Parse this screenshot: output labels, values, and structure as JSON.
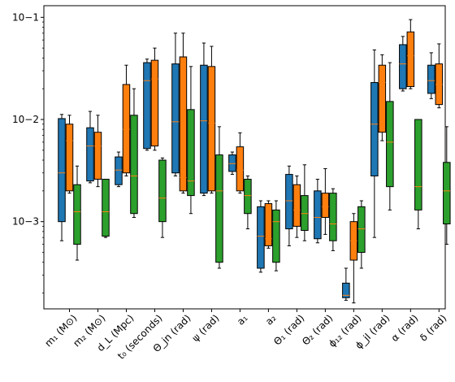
{
  "chart_data": {
    "type": "box",
    "y_scale": "log",
    "ylim": [
      0.00014,
      0.13
    ],
    "yticks": [
      {
        "value": 0.001,
        "label": "10−3"
      },
      {
        "value": 0.01,
        "label": "10−2"
      },
      {
        "value": 0.1,
        "label": "10−1"
      }
    ],
    "grid": false,
    "legend": "none",
    "categories": [
      "m₁ (M⊙)",
      "m₂ (M⊙)",
      "d_L (Mpc)",
      "t₀ (seconds)",
      "Θ_jn (rad)",
      "ψ (rad)",
      "a₁",
      "a₂",
      "Θ₁ (rad)",
      "Θ₂ (rad)",
      "ϕ₁₂ (rad)",
      "ϕ_jl (rad)",
      "α (rad)",
      "δ (rad)"
    ],
    "series": [
      {
        "color": "#1f77b4",
        "boxes": [
          {
            "whislo": 0.00065,
            "q1": 0.001,
            "med": 0.003,
            "q3": 0.0102,
            "whishi": 0.0112
          },
          {
            "whislo": 0.0024,
            "q1": 0.0025,
            "med": 0.0055,
            "q3": 0.0083,
            "whishi": 0.012
          },
          {
            "whislo": 0.0022,
            "q1": 0.0023,
            "med": 0.0032,
            "q3": 0.0043,
            "whishi": 0.0048
          },
          {
            "whislo": 0.005,
            "q1": 0.0052,
            "med": 0.024,
            "q3": 0.036,
            "whishi": 0.039
          },
          {
            "whislo": 0.0028,
            "q1": 0.003,
            "med": 0.0095,
            "q3": 0.035,
            "whishi": 0.07
          },
          {
            "whislo": 0.0018,
            "q1": 0.0019,
            "med": 0.0097,
            "q3": 0.034,
            "whishi": 0.056
          },
          {
            "whislo": 0.0029,
            "q1": 0.0031,
            "med": 0.0037,
            "q3": 0.0045,
            "whishi": 0.0048
          },
          {
            "whislo": 0.00032,
            "q1": 0.00035,
            "med": 0.00072,
            "q3": 0.0014,
            "whishi": 0.0016
          },
          {
            "whislo": 0.00058,
            "q1": 0.00085,
            "med": 0.0016,
            "q3": 0.0029,
            "whishi": 0.0035
          },
          {
            "whislo": 0.00062,
            "q1": 0.00068,
            "med": 0.0011,
            "q3": 0.002,
            "whishi": 0.0026
          },
          {
            "whislo": 0.00017,
            "q1": 0.00018,
            "med": 0.00019,
            "q3": 0.00025,
            "whishi": 0.00035
          },
          {
            "whislo": 0.0007,
            "q1": 0.0028,
            "med": 0.009,
            "q3": 0.023,
            "whishi": 0.048
          },
          {
            "whislo": 0.019,
            "q1": 0.02,
            "med": 0.035,
            "q3": 0.054,
            "whishi": 0.065
          },
          {
            "whislo": 0.016,
            "q1": 0.018,
            "med": 0.024,
            "q3": 0.034,
            "whishi": 0.045
          }
        ]
      },
      {
        "color": "#ff7f0e",
        "boxes": [
          {
            "whislo": 0.0019,
            "q1": 0.002,
            "med": 0.0062,
            "q3": 0.009,
            "whishi": 0.011
          },
          {
            "whislo": 0.0022,
            "q1": 0.0026,
            "med": 0.0055,
            "q3": 0.0075,
            "whishi": 0.011
          },
          {
            "whislo": 0.0028,
            "q1": 0.003,
            "med": 0.008,
            "q3": 0.022,
            "whishi": 0.034
          },
          {
            "whislo": 0.005,
            "q1": 0.0055,
            "med": 0.025,
            "q3": 0.038,
            "whishi": 0.05
          },
          {
            "whislo": 0.0019,
            "q1": 0.002,
            "med": 0.0027,
            "q3": 0.041,
            "whishi": 0.07
          },
          {
            "whislo": 0.0019,
            "q1": 0.002,
            "med": 0.0092,
            "q3": 0.033,
            "whishi": 0.052
          },
          {
            "whislo": 0.0019,
            "q1": 0.002,
            "med": 0.0032,
            "q3": 0.0054,
            "whishi": 0.0074
          },
          {
            "whislo": 0.00055,
            "q1": 0.00058,
            "med": 0.00068,
            "q3": 0.0015,
            "whishi": 0.0016
          },
          {
            "whislo": 0.0007,
            "q1": 0.0009,
            "med": 0.0013,
            "q3": 0.0023,
            "whishi": 0.0028
          },
          {
            "whislo": 0.00075,
            "q1": 0.0011,
            "med": 0.0014,
            "q3": 0.0019,
            "whishi": 0.0033
          },
          {
            "whislo": 0.00016,
            "q1": 0.00042,
            "med": 0.00065,
            "q3": 0.001,
            "whishi": 0.0012
          },
          {
            "whislo": 0.0062,
            "q1": 0.0075,
            "med": 0.023,
            "q3": 0.034,
            "whishi": 0.043
          },
          {
            "whislo": 0.02,
            "q1": 0.021,
            "med": 0.042,
            "q3": 0.072,
            "whishi": 0.095
          },
          {
            "whislo": 0.013,
            "q1": 0.014,
            "med": 0.022,
            "q3": 0.035,
            "whishi": 0.055
          }
        ]
      },
      {
        "color": "#2ca02c",
        "boxes": [
          {
            "whislo": 0.00042,
            "q1": 0.0006,
            "med": 0.00125,
            "q3": 0.0023,
            "whishi": 0.0035
          },
          {
            "whislo": 0.0007,
            "q1": 0.00072,
            "med": 0.00125,
            "q3": 0.0026,
            "whishi": 0.0026
          },
          {
            "whislo": 0.0011,
            "q1": 0.0012,
            "med": 0.0028,
            "q3": 0.011,
            "whishi": 0.02
          },
          {
            "whislo": 0.0007,
            "q1": 0.001,
            "med": 0.0017,
            "q3": 0.004,
            "whishi": 0.0042
          },
          {
            "whislo": 0.0012,
            "q1": 0.0018,
            "med": 0.0025,
            "q3": 0.0125,
            "whishi": 0.033
          },
          {
            "whislo": 0.00035,
            "q1": 0.0004,
            "med": 0.002,
            "q3": 0.0045,
            "whishi": 0.0085
          },
          {
            "whislo": 0.00085,
            "q1": 0.0012,
            "med": 0.0018,
            "q3": 0.0026,
            "whishi": 0.0028
          },
          {
            "whislo": 0.00033,
            "q1": 0.0004,
            "med": 0.001,
            "q3": 0.0013,
            "whishi": 0.0016
          },
          {
            "whislo": 0.00065,
            "q1": 0.00082,
            "med": 0.0012,
            "q3": 0.0018,
            "whishi": 0.0036
          },
          {
            "whislo": 0.00052,
            "q1": 0.00065,
            "med": 0.00095,
            "q3": 0.0019,
            "whishi": 0.0021
          },
          {
            "whislo": 0.00035,
            "q1": 0.0005,
            "med": 0.00085,
            "q3": 0.0014,
            "whishi": 0.0016
          },
          {
            "whislo": 0.0013,
            "q1": 0.0022,
            "med": 0.006,
            "q3": 0.015,
            "whishi": 0.036
          },
          {
            "whislo": 0.00085,
            "q1": 0.0013,
            "med": 0.0022,
            "q3": 0.01,
            "whishi": 0.01
          },
          {
            "whislo": 0.0006,
            "q1": 0.00095,
            "med": 0.002,
            "q3": 0.0038,
            "whishi": 0.0085
          }
        ]
      }
    ],
    "median_color": "#ff7f0e",
    "edge_color": "#000000"
  }
}
